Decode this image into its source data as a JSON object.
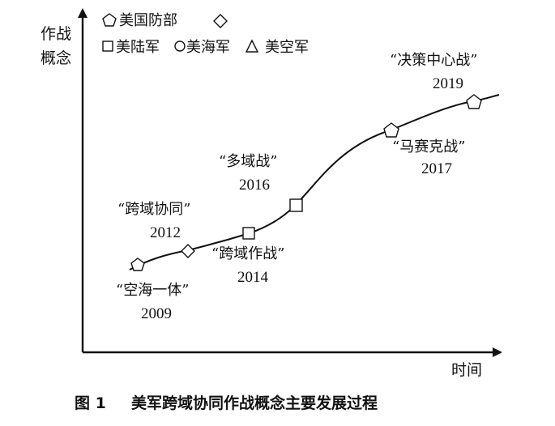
{
  "y_axis_label": [
    "作战",
    "概念"
  ],
  "x_axis_label": "时间",
  "legend": {
    "row1": [
      "美国防部",
      ""
    ],
    "row2": [
      "美陆军",
      "美海军",
      "美空军"
    ]
  },
  "milestones": [
    {
      "name": "“空海一体”",
      "year": "2009",
      "org": "defense-dept"
    },
    {
      "name": "“跨域协同”",
      "year": "2012",
      "org": "dod-diamond"
    },
    {
      "name": "“跨域作战”",
      "year": "2014",
      "org": "army"
    },
    {
      "name": "“多域战”",
      "year": "2016",
      "org": "army"
    },
    {
      "name": "“马赛克战”",
      "year": "2017",
      "org": "defense-dept"
    },
    {
      "name": "“决策中心战”",
      "year": "2019",
      "org": "defense-dept"
    }
  ],
  "caption": {
    "number": "图 1",
    "title": "美军跨域协同作战概念主要发展过程"
  }
}
